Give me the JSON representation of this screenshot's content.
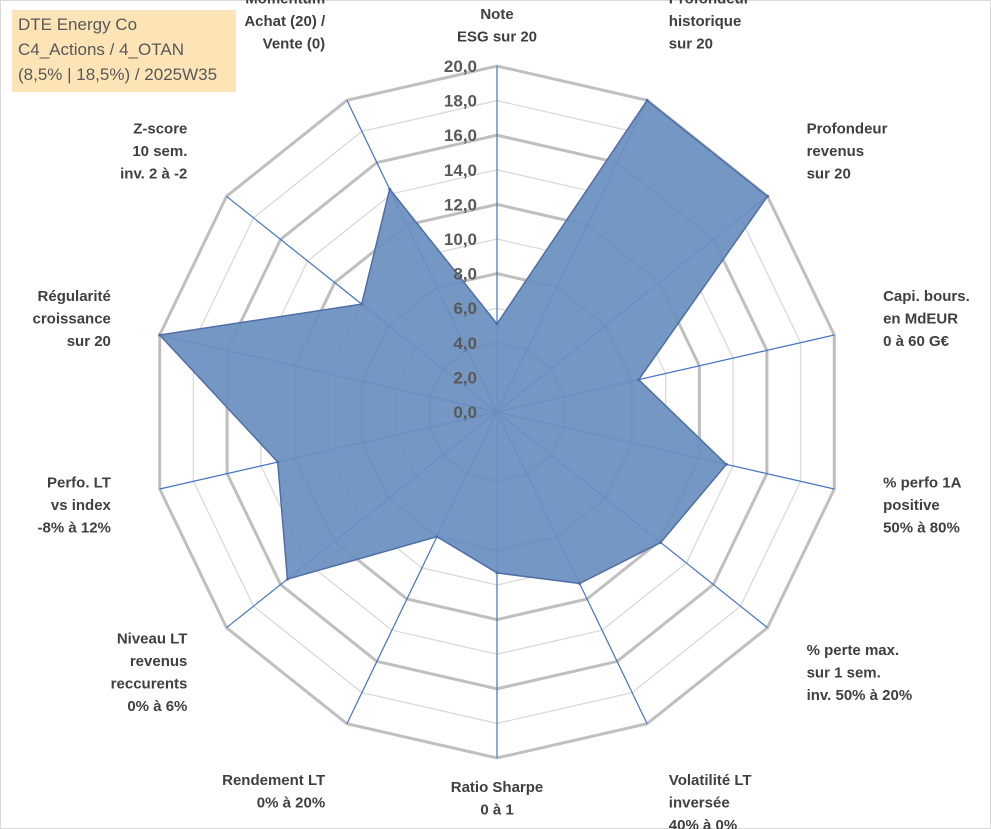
{
  "info_box": {
    "line1": "DTE Energy Co",
    "line2": "C4_Actions / 4_OTAN",
    "line3": "(8,5% | 18,5%) / 2025W35"
  },
  "chart_data": {
    "type": "radar",
    "title": "",
    "rmin": 0,
    "rmax": 20,
    "tick_step": 2,
    "tick_labels": [
      "0,0",
      "2,0",
      "4,0",
      "6,0",
      "8,0",
      "10,0",
      "12,0",
      "14,0",
      "16,0",
      "18,0",
      "20,0"
    ],
    "axes": [
      [
        "Note",
        "ESG sur 20"
      ],
      [
        "Profondeur",
        "historique",
        "sur 20"
      ],
      [
        "Profondeur",
        "revenus",
        "sur 20"
      ],
      [
        "Capi. bours.",
        "en MdEUR",
        "0 à 60 G€"
      ],
      [
        "% perfo 1A",
        "positive",
        "50% à 80%"
      ],
      [
        "% perte max.",
        "sur 1 sem.",
        "inv. 50% à 20%"
      ],
      [
        "Volatilité LT",
        "inversée",
        "40% à 0%"
      ],
      [
        "Ratio Sharpe",
        "0 à 1"
      ],
      [
        "Rendement LT",
        "0% à 20%"
      ],
      [
        "Niveau LT",
        "revenus",
        "reccurents",
        "0% à 6%"
      ],
      [
        "Perfo. LT",
        "vs index",
        "-8% à 12%"
      ],
      [
        "Régularité",
        "croissance",
        "sur 20"
      ],
      [
        "Z-score",
        "10 sem.",
        "inv. 2 à -2"
      ],
      [
        "Momentum",
        "Achat (20) /",
        "Vente (0)"
      ]
    ],
    "series": [
      {
        "values": [
          5.1,
          20.0,
          20.0,
          8.4,
          13.6,
          12.1,
          11.0,
          9.3,
          8.0,
          15.5,
          13.0,
          20.0,
          10.0,
          14.3
        ]
      }
    ],
    "colors": {
      "fill": "#6a8fbf",
      "stroke": "#4f6ea8",
      "spoke": "#4472c4",
      "grid_major": "#bfbfbf",
      "grid_minor": "#d9d9d9",
      "info_bg": "#fce4b6"
    },
    "grid": true
  }
}
